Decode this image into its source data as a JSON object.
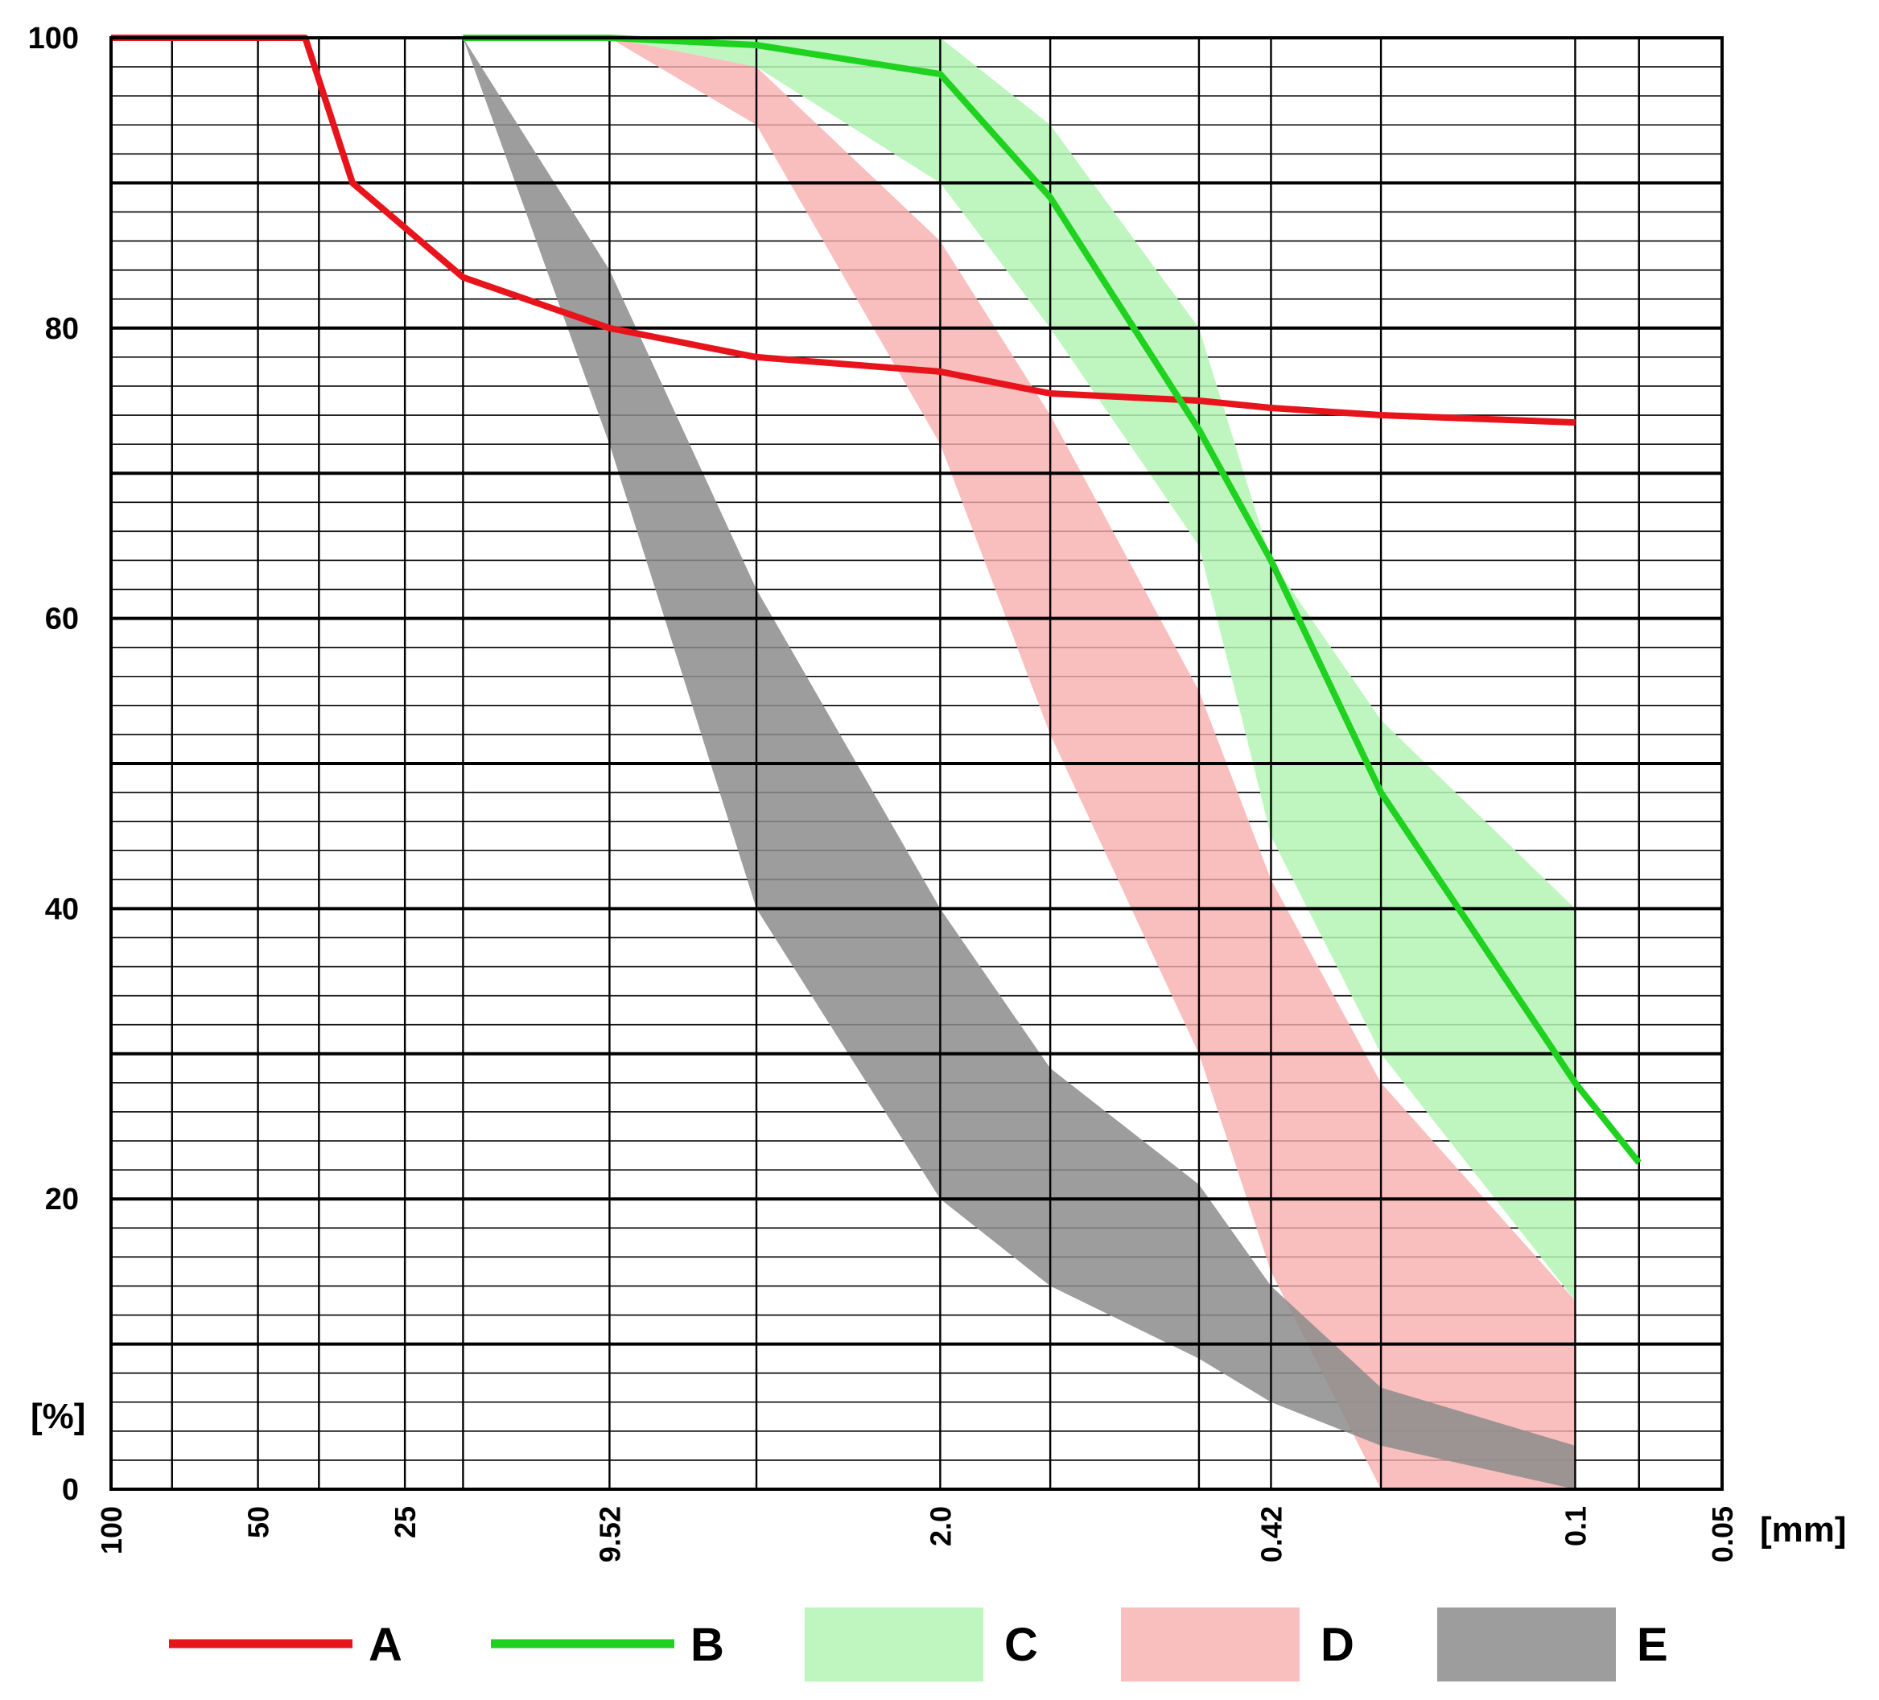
{
  "chart_data": {
    "type": "area",
    "x_scale": "log",
    "x_reversed": true,
    "xlim": [
      100,
      0.05
    ],
    "ylim": [
      0,
      100
    ],
    "grid": true,
    "legend_position": "bottom",
    "ylabel": "[%]",
    "xlabel": "[mm]",
    "y_ticks": [
      {
        "value": 0,
        "label": "0"
      },
      {
        "value": 20,
        "label": "20"
      },
      {
        "value": 40,
        "label": "40"
      },
      {
        "value": 60,
        "label": "60"
      },
      {
        "value": 80,
        "label": "80"
      },
      {
        "value": 100,
        "label": "100"
      }
    ],
    "x_ticks": [
      {
        "value": 100,
        "label": "100"
      },
      {
        "value": 50,
        "label": "50"
      },
      {
        "value": 25,
        "label": "25"
      },
      {
        "value": 9.52,
        "label": "9.52"
      },
      {
        "value": 2.0,
        "label": "2.0"
      },
      {
        "value": 0.42,
        "label": "0.42"
      },
      {
        "value": 0.1,
        "label": "0.1"
      },
      {
        "value": 0.05,
        "label": "0.05"
      }
    ],
    "x_gridlines": [
      100,
      75,
      50,
      37.5,
      25,
      19,
      9.52,
      4.76,
      2.0,
      1.19,
      0.59,
      0.42,
      0.25,
      0.1,
      0.074,
      0.05
    ],
    "series": [
      {
        "name": "A",
        "type": "line",
        "color": "#e8141c",
        "x": [
          100,
          40,
          32,
          19,
          9.52,
          4.76,
          2.0,
          1.19,
          0.59,
          0.42,
          0.25,
          0.1
        ],
        "y": [
          100,
          100,
          90,
          83.5,
          80,
          78,
          77,
          75.5,
          75,
          74.5,
          74,
          73.5
        ]
      },
      {
        "name": "B",
        "type": "line",
        "color": "#1fd21f",
        "x": [
          19,
          9.52,
          4.76,
          2.0,
          1.19,
          0.59,
          0.42,
          0.25,
          0.1,
          0.074
        ],
        "y": [
          100,
          100,
          99.5,
          97.5,
          89,
          73,
          64,
          48,
          28,
          22.5
        ]
      },
      {
        "name": "C",
        "type": "band",
        "color": "#b4f5b4",
        "x": [
          9.52,
          4.76,
          2.0,
          1.19,
          0.59,
          0.42,
          0.25,
          0.1
        ],
        "y_upper": [
          100,
          100,
          100,
          94,
          80,
          64,
          53,
          40
        ],
        "y_lower": [
          100,
          98,
          90,
          80,
          65,
          45,
          30,
          13
        ]
      },
      {
        "name": "D",
        "type": "band",
        "color": "#f8aeae",
        "x": [
          9.52,
          4.76,
          2.0,
          1.19,
          0.59,
          0.42,
          0.25,
          0.1
        ],
        "y_upper": [
          100,
          98,
          86,
          74,
          55,
          42,
          28,
          13
        ],
        "y_lower": [
          100,
          94,
          72,
          52,
          30,
          15,
          0,
          0
        ]
      },
      {
        "name": "E",
        "type": "band",
        "color": "#8c8c8c",
        "x": [
          19,
          9.52,
          4.76,
          2.0,
          1.19,
          0.59,
          0.42,
          0.25,
          0.1
        ],
        "y_upper": [
          100,
          84,
          62,
          40,
          29,
          21,
          14,
          7,
          3
        ],
        "y_lower": [
          100,
          72,
          40,
          20,
          14,
          9,
          6,
          3,
          0
        ]
      }
    ]
  }
}
